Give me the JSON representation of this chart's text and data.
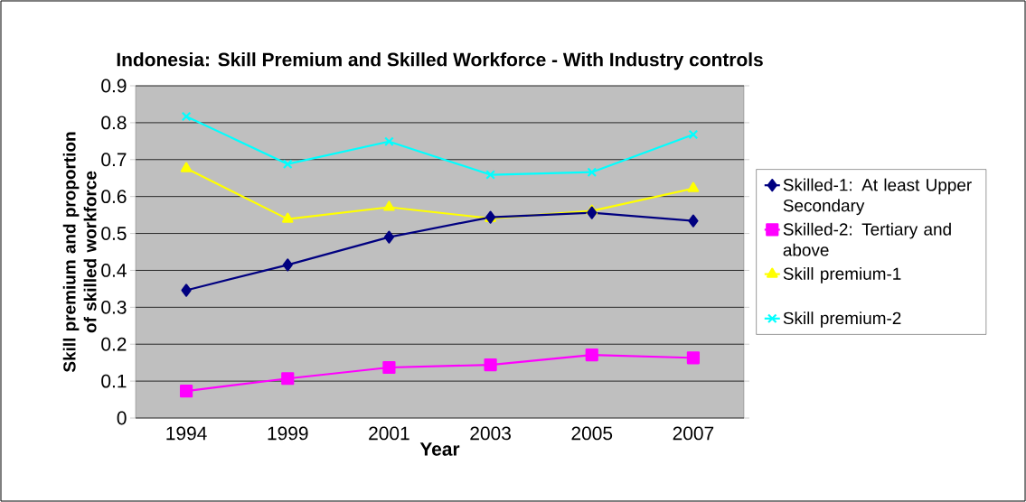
{
  "chart_data": {
    "type": "line",
    "title": "Indonesia: Skill Premium and Skilled Workforce - With Industry controls",
    "xlabel": "Year",
    "ylabel": "Skill premium and proportion of skilled workforce",
    "categories": [
      "1994",
      "1999",
      "2001",
      "2003",
      "2005",
      "2007"
    ],
    "ylim": [
      0,
      0.9
    ],
    "yticks": [
      0,
      0.1,
      0.2,
      0.3,
      0.4,
      0.5,
      0.6,
      0.7,
      0.8,
      0.9
    ],
    "grid": "y",
    "legend": "right",
    "line_style": "solid",
    "series": [
      {
        "name": "Skilled-1: At least Upper Secondary",
        "color": "#000080",
        "marker": "diamond",
        "values": [
          0.346,
          0.415,
          0.49,
          0.544,
          0.556,
          0.534
        ]
      },
      {
        "name": "Skilled-2: Tertiary and above",
        "color": "#ff00ff",
        "marker": "square",
        "values": [
          0.073,
          0.107,
          0.137,
          0.144,
          0.171,
          0.163
        ]
      },
      {
        "name": "Skill premium-1",
        "color": "#ffff00",
        "marker": "triangle",
        "values": [
          0.676,
          0.539,
          0.571,
          0.541,
          0.561,
          0.622
        ]
      },
      {
        "name": "Skill premium-2",
        "color": "#00ffff",
        "marker": "cross",
        "values": [
          0.817,
          0.688,
          0.749,
          0.659,
          0.666,
          0.768
        ]
      }
    ]
  }
}
